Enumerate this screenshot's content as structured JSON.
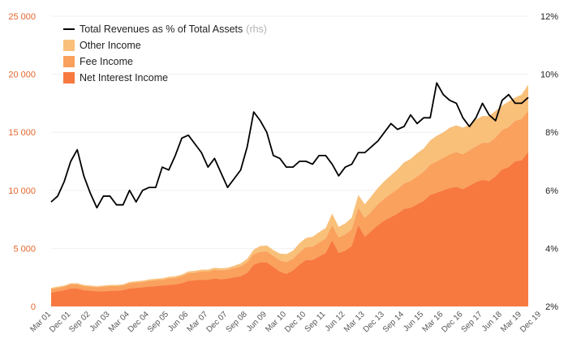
{
  "chart_data": {
    "type": "area",
    "legend": {
      "line_label": "Total Revenues as % of Total Assets",
      "line_suffix": "(rhs)",
      "other": "Other Income",
      "fee": "Fee Income",
      "nii": "Net Interest Income"
    },
    "colors": {
      "other": "#f9c07a",
      "fee": "#f9a15d",
      "nii": "#f7793f",
      "line": "#000000",
      "left_axis": "#e3662d"
    },
    "y_left_ticks": [
      "0",
      "5 000",
      "10 000",
      "15 000",
      "20 000",
      "25 000"
    ],
    "y_left_range": [
      0,
      25000
    ],
    "y_right_ticks": [
      "2%",
      "4%",
      "6%",
      "8%",
      "10%",
      "12%"
    ],
    "y_right_range": [
      2,
      12
    ],
    "x_tick_labels": [
      "Mar 01",
      "Dec 01",
      "Sep 02",
      "Jun 03",
      "Mar 04",
      "Dec 04",
      "Sep 05",
      "Jun 06",
      "Mar 07",
      "Dec 07",
      "Sep 08",
      "Jun 09",
      "Mar 10",
      "Dec 10",
      "Sep 11",
      "Jun 12",
      "Mar 13",
      "Dec 13",
      "Sep 14",
      "Jun 15",
      "Mar 16",
      "Dec 16",
      "Sep 17",
      "Jun 18",
      "Mar 19",
      "Dec 19"
    ],
    "quarters_start": "Mar 01",
    "nii": [
      1200,
      1300,
      1400,
      1550,
      1550,
      1400,
      1350,
      1300,
      1300,
      1350,
      1350,
      1400,
      1550,
      1600,
      1650,
      1700,
      1750,
      1800,
      1850,
      1900,
      2000,
      2200,
      2250,
      2300,
      2300,
      2400,
      2350,
      2400,
      2500,
      2600,
      2900,
      3600,
      3800,
      3800,
      3400,
      3000,
      2800,
      3100,
      3600,
      4000,
      4000,
      4300,
      4600,
      5700,
      4600,
      4800,
      5200,
      7000,
      6000,
      6500,
      7000,
      7400,
      7700,
      8000,
      8400,
      8500,
      8800,
      9100,
      9600,
      9800,
      10000,
      10200,
      10300,
      10100,
      10400,
      10700,
      10900,
      10800,
      11200,
      11800,
      12000,
      12500,
      12600,
      13300
    ],
    "fee": [
      300,
      300,
      300,
      350,
      350,
      350,
      350,
      350,
      400,
      400,
      400,
      400,
      450,
      450,
      450,
      500,
      500,
      500,
      550,
      550,
      600,
      650,
      650,
      700,
      700,
      750,
      750,
      750,
      800,
      850,
      900,
      900,
      900,
      950,
      950,
      950,
      1000,
      1000,
      1050,
      1100,
      1150,
      1200,
      1250,
      1300,
      1350,
      1400,
      1450,
      1500,
      1600,
      1700,
      1800,
      1900,
      2000,
      2100,
      2200,
      2300,
      2400,
      2500,
      2600,
      2700,
      2800,
      2900,
      3000,
      3000,
      3050,
      3100,
      3200,
      3300,
      3350,
      3400,
      3450,
      3500,
      3550,
      3600
    ],
    "other": [
      100,
      100,
      100,
      100,
      100,
      100,
      100,
      100,
      100,
      100,
      100,
      100,
      100,
      120,
      120,
      120,
      130,
      130,
      150,
      150,
      150,
      160,
      160,
      170,
      170,
      180,
      180,
      180,
      200,
      250,
      300,
      400,
      500,
      500,
      500,
      600,
      700,
      700,
      800,
      800,
      850,
      900,
      900,
      1000,
      900,
      950,
      1000,
      1100,
      1200,
      1300,
      1400,
      1500,
      1600,
      1700,
      1800,
      1900,
      2000,
      2000,
      2100,
      2200,
      2200,
      2300,
      2300,
      2300,
      2200,
      2300,
      2300,
      2300,
      2300,
      2100,
      2200,
      2000,
      2100,
      2200
    ],
    "total_revenues_pct": [
      5.6,
      5.8,
      6.3,
      7.0,
      7.4,
      6.5,
      5.9,
      5.4,
      5.8,
      5.8,
      5.5,
      5.5,
      6.0,
      5.6,
      6.0,
      6.1,
      6.1,
      6.8,
      6.7,
      7.2,
      7.8,
      7.9,
      7.6,
      7.3,
      6.8,
      7.1,
      6.6,
      6.1,
      6.4,
      6.7,
      7.5,
      8.7,
      8.4,
      8.0,
      7.2,
      7.1,
      6.8,
      6.8,
      7.0,
      7.0,
      6.9,
      7.2,
      7.2,
      6.9,
      6.5,
      6.8,
      6.9,
      7.3,
      7.3,
      7.5,
      7.7,
      8.0,
      8.3,
      8.1,
      8.2,
      8.6,
      8.3,
      8.5,
      8.5,
      9.7,
      9.3,
      9.1,
      9.0,
      8.5,
      8.2,
      8.5,
      9.0,
      8.6,
      8.4,
      9.1,
      9.3,
      9.0,
      9.0,
      9.2
    ]
  }
}
